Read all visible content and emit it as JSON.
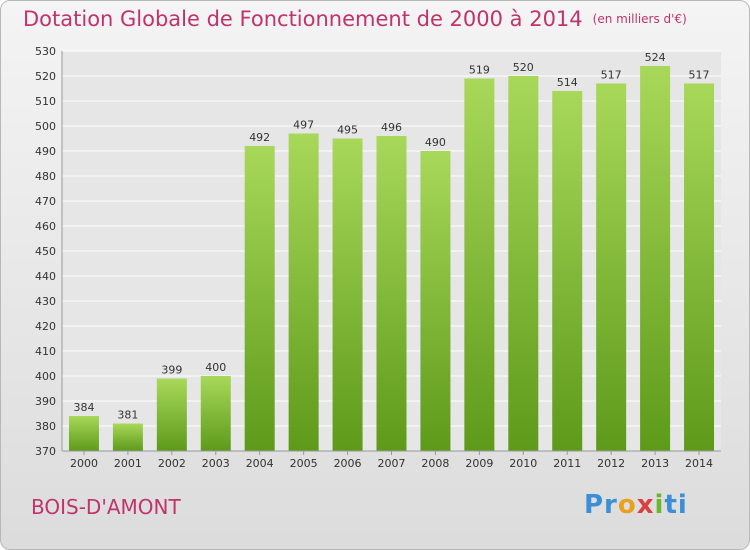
{
  "title": "Dotation Globale de Fonctionnement de 2000 à 2014",
  "unit": "(en milliers d'€)",
  "city": "BOIS-D'AMONT",
  "logo": {
    "p1": "Pr",
    "p2": "o",
    "p3": "x",
    "p4": "i",
    "p5": "ti"
  },
  "colors": {
    "bar_top": "#a8d85a",
    "bar_bottom": "#5e9a1a",
    "title": "#c0336b"
  },
  "chart_data": {
    "type": "bar",
    "categories": [
      "2000",
      "2001",
      "2002",
      "2003",
      "2004",
      "2005",
      "2006",
      "2007",
      "2008",
      "2009",
      "2010",
      "2011",
      "2012",
      "2013",
      "2014"
    ],
    "values": [
      384,
      381,
      399,
      400,
      492,
      497,
      495,
      496,
      490,
      519,
      520,
      514,
      517,
      524,
      517
    ],
    "ylim": [
      370,
      530
    ],
    "yticks": [
      370,
      380,
      390,
      400,
      410,
      420,
      430,
      440,
      450,
      460,
      470,
      480,
      490,
      500,
      510,
      520,
      530
    ],
    "grid": true
  }
}
